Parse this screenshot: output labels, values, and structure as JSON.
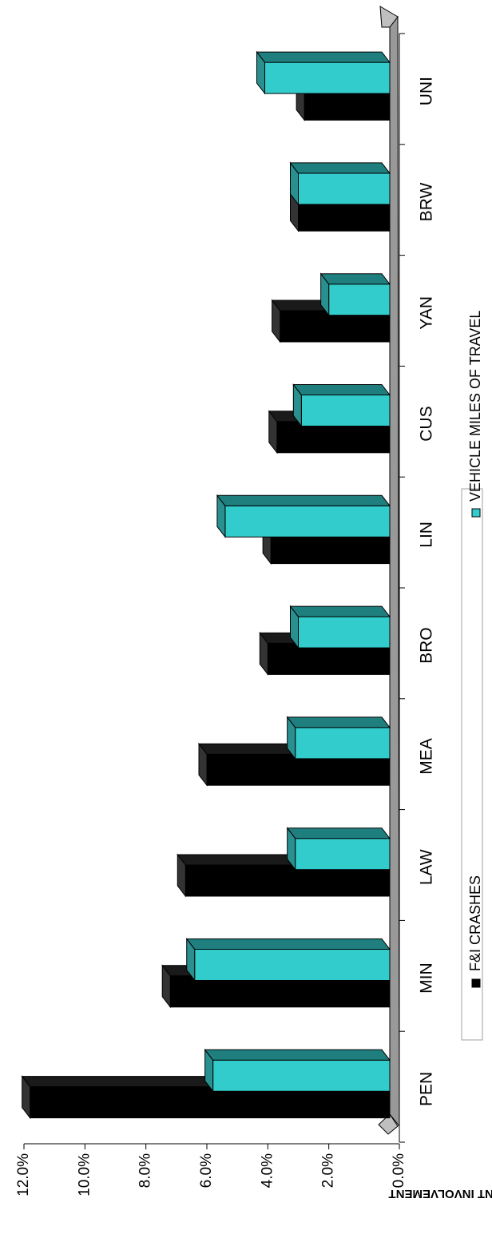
{
  "chart_data": {
    "type": "bar",
    "orientation": "horizontal-rotated",
    "title": "",
    "xlabel": "",
    "ylabel": "PERCENT INVOLVEMENT",
    "ylim": [
      0,
      12
    ],
    "y_ticks": [
      "0.0%",
      "2.0%",
      "4.0%",
      "6.0%",
      "8.0%",
      "10.0%",
      "12.0%"
    ],
    "categories": [
      "PEN",
      "MIN",
      "LAW",
      "MEA",
      "BRO",
      "LIN",
      "CUS",
      "YAN",
      "BRW",
      "UNI"
    ],
    "series": [
      {
        "name": "F&I CRASHES",
        "color": "#000000",
        "values": [
          11.8,
          7.2,
          6.7,
          6.0,
          4.0,
          3.9,
          3.7,
          3.6,
          3.0,
          2.8
        ]
      },
      {
        "name": "VEHICLE MILES OF TRAVEL",
        "color": "#33cccc",
        "values": [
          5.8,
          6.4,
          3.1,
          3.1,
          3.0,
          5.4,
          2.9,
          2.0,
          3.0,
          4.1
        ]
      }
    ],
    "grid": false,
    "legend": "bottom",
    "style_3d": true,
    "colors": {
      "floor": "#999999",
      "side_dark": "#1a1a1a",
      "side_teal": "#1f7f7f",
      "top_teal": "#2a8f8f"
    }
  }
}
